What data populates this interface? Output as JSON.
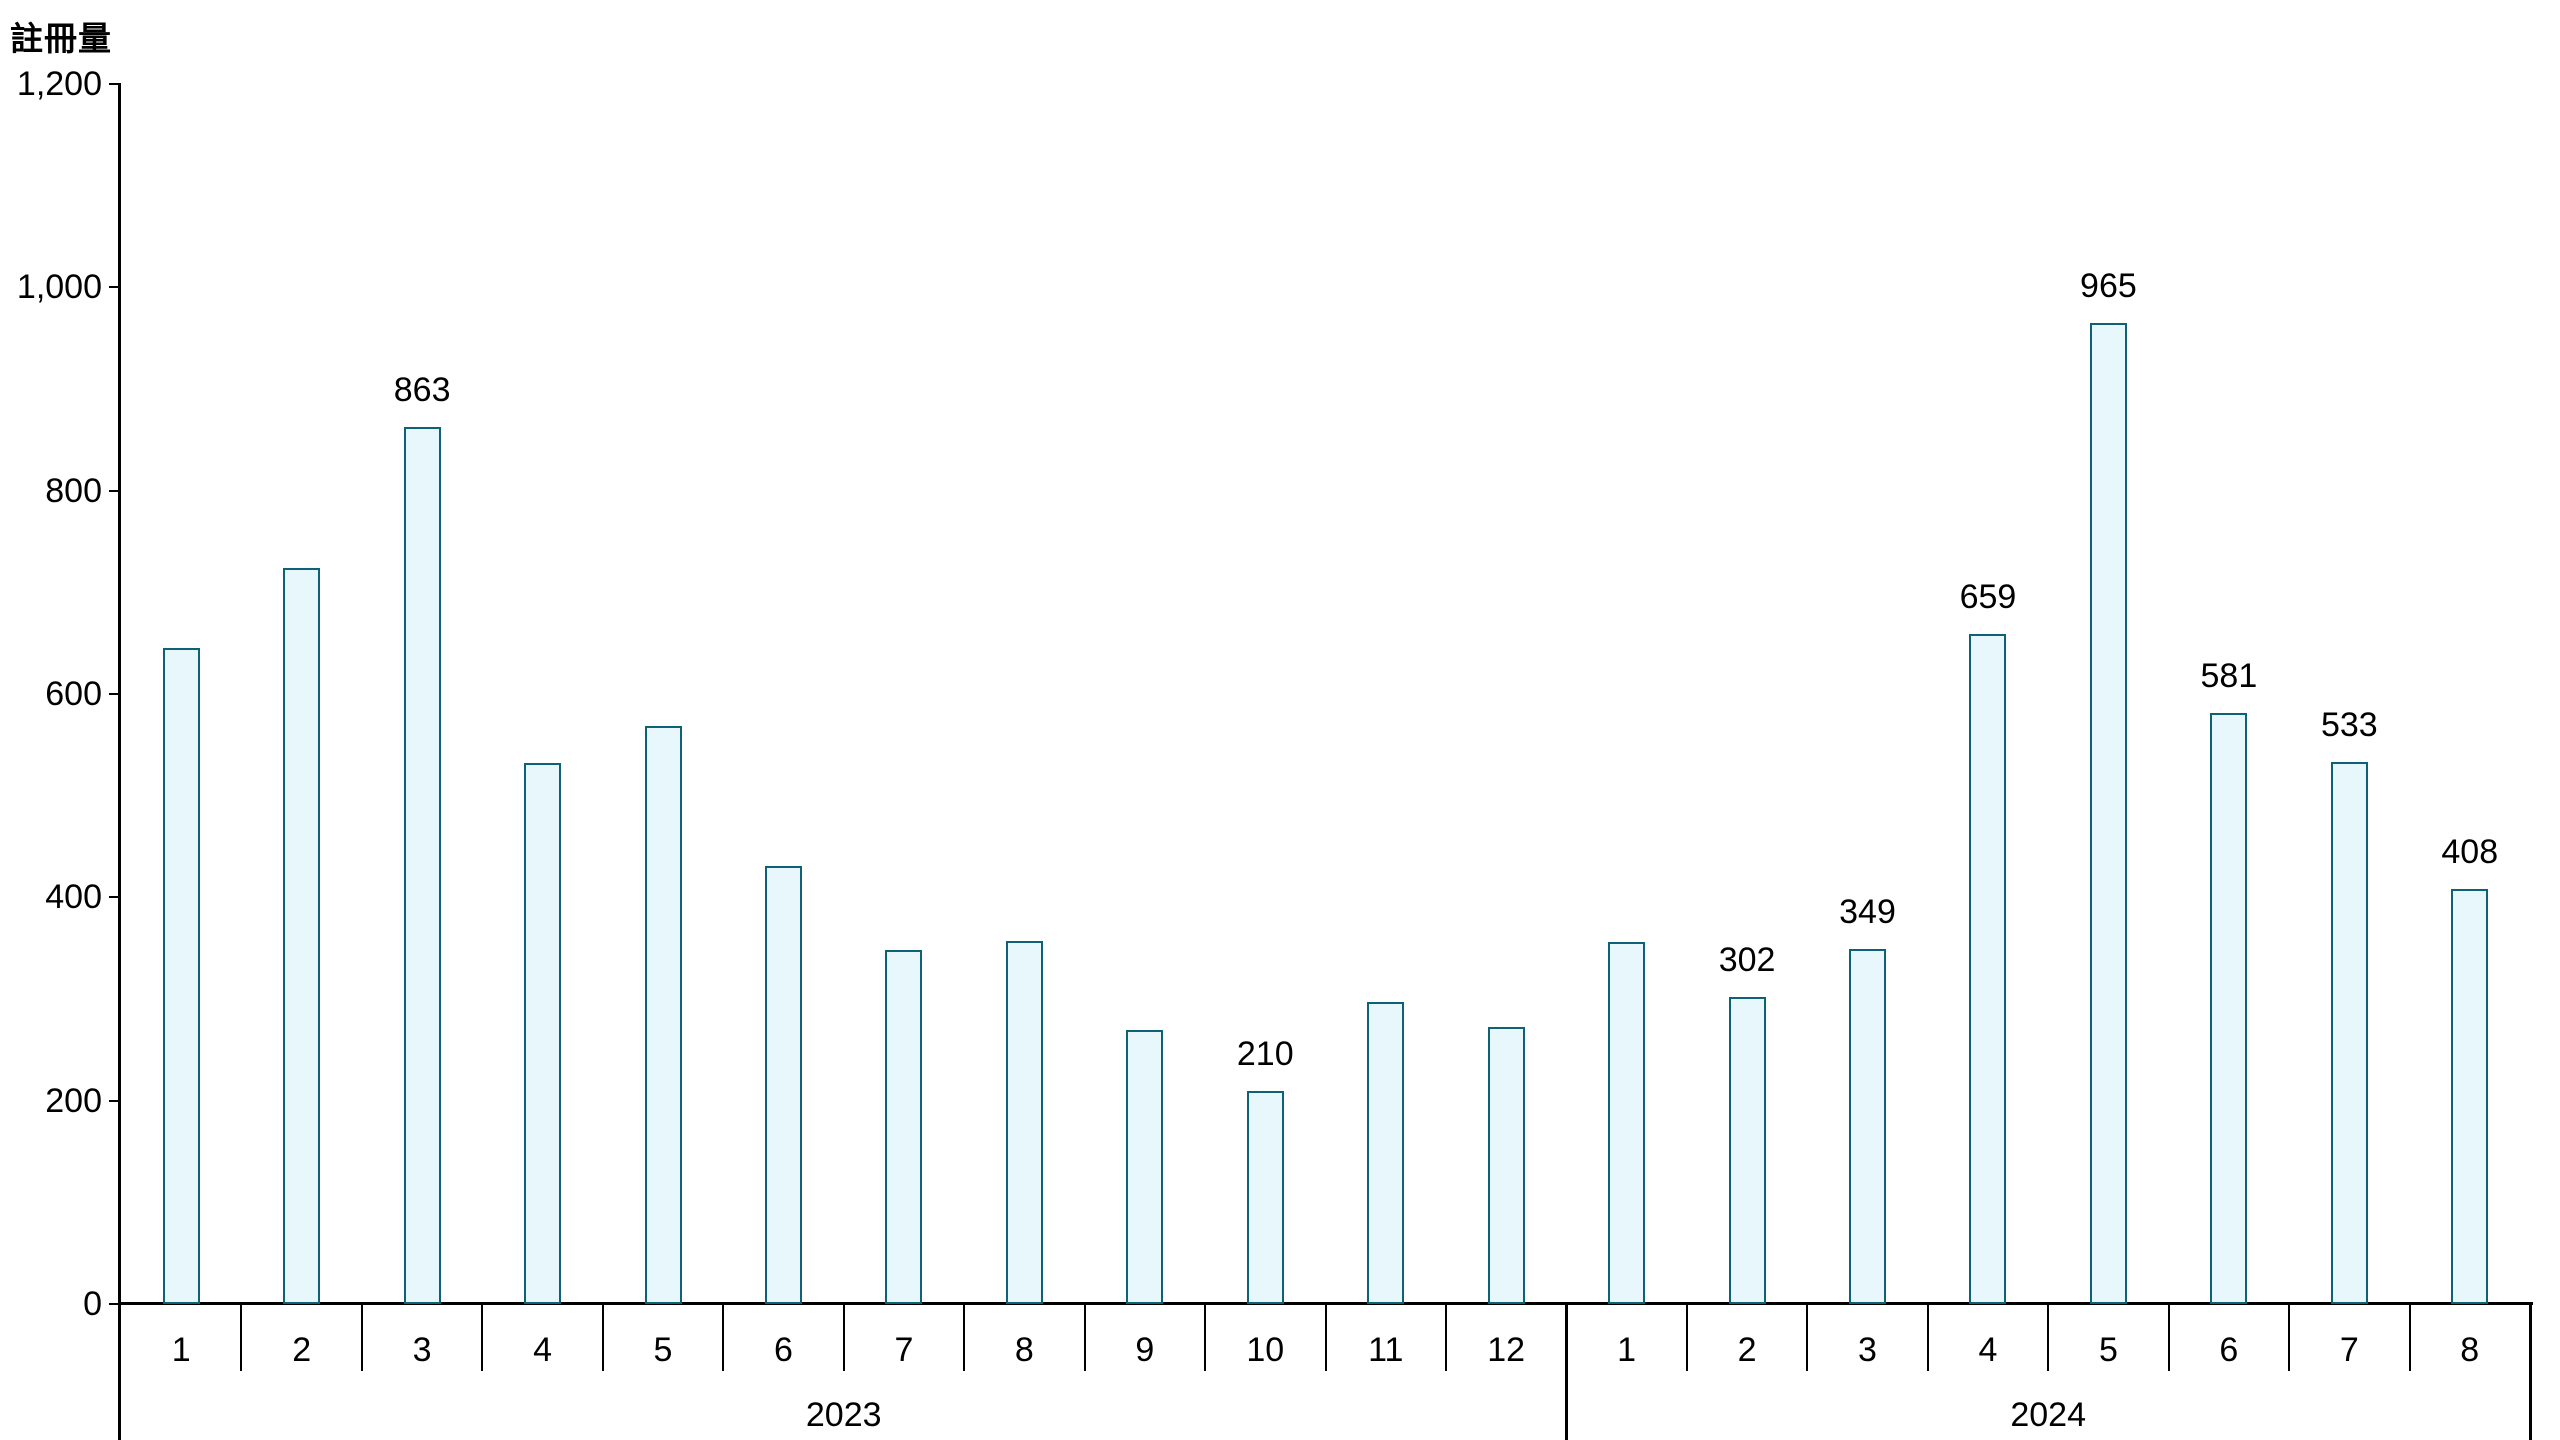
{
  "colors": {
    "bar_fill": "#e8f7fc",
    "bar_border": "#0e6277",
    "axis": "#000000",
    "text": "#000000"
  },
  "chart_data": {
    "type": "bar",
    "title": "",
    "ylabel": "註冊量",
    "xlabel": "",
    "ylim": [
      0,
      1200
    ],
    "grid": false,
    "legend_position": "none",
    "y_ticks": [
      {
        "value": 0,
        "label": "0"
      },
      {
        "value": 200,
        "label": "200"
      },
      {
        "value": 400,
        "label": "400"
      },
      {
        "value": 600,
        "label": "600"
      },
      {
        "value": 800,
        "label": "800"
      },
      {
        "value": 1000,
        "label": "1,000"
      },
      {
        "value": 1200,
        "label": "1,200"
      }
    ],
    "groups": [
      {
        "year": "2023",
        "categories": [
          "1",
          "2",
          "3",
          "4",
          "5",
          "6",
          "7",
          "8",
          "9",
          "10",
          "11",
          "12"
        ],
        "values": [
          645,
          724,
          863,
          532,
          569,
          431,
          348,
          357,
          270,
          210,
          297,
          272
        ],
        "data_labels": [
          null,
          null,
          "863",
          null,
          null,
          null,
          null,
          null,
          null,
          "210",
          null,
          null
        ]
      },
      {
        "year": "2024",
        "categories": [
          "1",
          "2",
          "3",
          "4",
          "5",
          "6",
          "7",
          "8"
        ],
        "values": [
          356,
          302,
          349,
          659,
          965,
          581,
          533,
          408
        ],
        "data_labels": [
          null,
          "302",
          "349",
          "659",
          "965",
          "581",
          "533",
          "408"
        ]
      }
    ]
  }
}
